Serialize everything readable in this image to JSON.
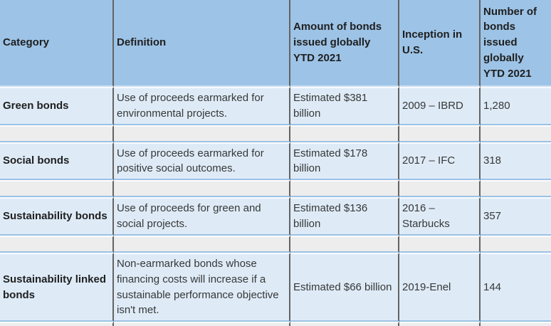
{
  "table": {
    "columns": [
      {
        "label": "Category"
      },
      {
        "label": "Definition"
      },
      {
        "label": "Amount of bonds issued globally YTD 2021"
      },
      {
        "label": "Inception in U.S."
      },
      {
        "label": "Number of bonds issued globally YTD 2021"
      }
    ],
    "rows": [
      {
        "category": "Green bonds",
        "definition": "Use of proceeds earmarked for environmental projects.",
        "amount": "Estimated $381 billion",
        "inception": "2009 – IBRD",
        "number": "1,280"
      },
      {
        "category": "Social bonds",
        "definition": "Use of proceeds earmarked for positive social outcomes.",
        "amount": "Estimated $178 billion",
        "inception": "2017 – IFC",
        "number": "318"
      },
      {
        "category": "Sustainability bonds",
        "definition": "Use of proceeds for green and social projects.",
        "amount": "Estimated $136 billion",
        "inception": "2016 – Starbucks",
        "number": "357"
      },
      {
        "category": "Sustainability linked bonds",
        "definition": "Non-earmarked bonds whose financing costs will increase if a sustainable performance objective isn't met.",
        "amount": "Estimated $66 billion",
        "inception": "2019-Enel",
        "number": "144"
      }
    ],
    "colors": {
      "header_bg": "#9DC3E6",
      "row_bg": "#DEEBF7",
      "spacer_bg": "#EDEDED",
      "column_divider": "#636363",
      "row_border": "#9CC2E5",
      "header_text": "#1F1F1F",
      "body_text": "#373737"
    }
  }
}
